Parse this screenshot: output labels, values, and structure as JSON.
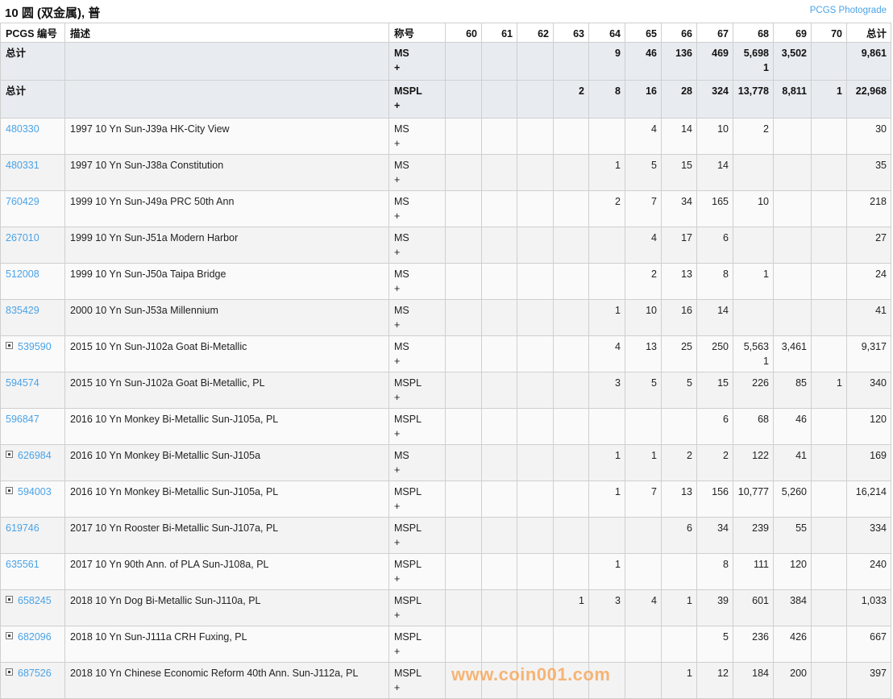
{
  "title": "10 圆 (双金属), 普",
  "photograde_link": "PCGS Photograde",
  "headers": [
    "PCGS 编号",
    "描述",
    "称号",
    "60",
    "61",
    "62",
    "63",
    "64",
    "65",
    "66",
    "67",
    "68",
    "69",
    "70",
    "总计"
  ],
  "totals": [
    {
      "label": "总计",
      "grade": "MS\n+",
      "cells": [
        "",
        "",
        "",
        "",
        "9",
        "46",
        "136",
        "469",
        "5,698\n1",
        "3,502",
        ""
      ],
      "total": "9,861"
    },
    {
      "label": "总计",
      "grade": "MSPL\n+",
      "cells": [
        "",
        "",
        "",
        "2",
        "8",
        "16",
        "28",
        "324",
        "13,778",
        "8,811",
        "1"
      ],
      "total": "22,968"
    }
  ],
  "rows": [
    {
      "code": "480330",
      "expand": false,
      "desc": "1997 10 Yn Sun-J39a HK-City View",
      "grade": "MS\n+",
      "cells": [
        "",
        "",
        "",
        "",
        "",
        "4",
        "14",
        "10",
        "2",
        "",
        ""
      ],
      "total": "30"
    },
    {
      "code": "480331",
      "expand": false,
      "desc": "1997 10 Yn Sun-J38a Constitution",
      "grade": "MS\n+",
      "cells": [
        "",
        "",
        "",
        "",
        "1",
        "5",
        "15",
        "14",
        "",
        "",
        ""
      ],
      "total": "35"
    },
    {
      "code": "760429",
      "expand": false,
      "desc": "1999 10 Yn Sun-J49a PRC 50th Ann",
      "grade": "MS\n+",
      "cells": [
        "",
        "",
        "",
        "",
        "2",
        "7",
        "34",
        "165",
        "10",
        "",
        ""
      ],
      "total": "218"
    },
    {
      "code": "267010",
      "expand": false,
      "desc": "1999 10 Yn Sun-J51a Modern Harbor",
      "grade": "MS\n+",
      "cells": [
        "",
        "",
        "",
        "",
        "",
        "4",
        "17",
        "6",
        "",
        "",
        ""
      ],
      "total": "27"
    },
    {
      "code": "512008",
      "expand": false,
      "desc": "1999 10 Yn Sun-J50a Taipa Bridge",
      "grade": "MS\n+",
      "cells": [
        "",
        "",
        "",
        "",
        "",
        "2",
        "13",
        "8",
        "1",
        "",
        ""
      ],
      "total": "24"
    },
    {
      "code": "835429",
      "expand": false,
      "desc": "2000 10 Yn Sun-J53a Millennium",
      "grade": "MS\n+",
      "cells": [
        "",
        "",
        "",
        "",
        "1",
        "10",
        "16",
        "14",
        "",
        "",
        ""
      ],
      "total": "41"
    },
    {
      "code": "539590",
      "expand": true,
      "desc": "2015 10 Yn Sun-J102a Goat Bi-Metallic",
      "grade": "MS\n+",
      "cells": [
        "",
        "",
        "",
        "",
        "4",
        "13",
        "25",
        "250",
        "5,563\n1",
        "3,461",
        ""
      ],
      "total": "9,317"
    },
    {
      "code": "594574",
      "expand": false,
      "desc": "2015 10 Yn Sun-J102a Goat Bi-Metallic, PL",
      "grade": "MSPL\n+",
      "cells": [
        "",
        "",
        "",
        "",
        "3",
        "5",
        "5",
        "15",
        "226",
        "85",
        "1"
      ],
      "total": "340"
    },
    {
      "code": "596847",
      "expand": false,
      "desc": "2016 10 Yn Monkey Bi-Metallic Sun-J105a, PL",
      "grade": "MSPL\n+",
      "cells": [
        "",
        "",
        "",
        "",
        "",
        "",
        "",
        "6",
        "68",
        "46",
        ""
      ],
      "total": "120"
    },
    {
      "code": "626984",
      "expand": true,
      "desc": "2016 10 Yn Monkey Bi-Metallic Sun-J105a",
      "grade": "MS\n+",
      "cells": [
        "",
        "",
        "",
        "",
        "1",
        "1",
        "2",
        "2",
        "122",
        "41",
        ""
      ],
      "total": "169"
    },
    {
      "code": "594003",
      "expand": true,
      "desc": "2016 10 Yn Monkey Bi-Metallic Sun-J105a, PL",
      "grade": "MSPL\n+",
      "cells": [
        "",
        "",
        "",
        "",
        "1",
        "7",
        "13",
        "156",
        "10,777",
        "5,260",
        ""
      ],
      "total": "16,214"
    },
    {
      "code": "619746",
      "expand": false,
      "desc": "2017 10 Yn Rooster Bi-Metallic Sun-J107a, PL",
      "grade": "MSPL\n+",
      "cells": [
        "",
        "",
        "",
        "",
        "",
        "",
        "6",
        "34",
        "239",
        "55",
        ""
      ],
      "total": "334"
    },
    {
      "code": "635561",
      "expand": false,
      "desc": "2017 10 Yn 90th Ann. of PLA Sun-J108a, PL",
      "grade": "MSPL\n+",
      "cells": [
        "",
        "",
        "",
        "",
        "1",
        "",
        "",
        "8",
        "111",
        "120",
        ""
      ],
      "total": "240"
    },
    {
      "code": "658245",
      "expand": true,
      "desc": "2018 10 Yn Dog Bi-Metallic Sun-J110a, PL",
      "grade": "MSPL\n+",
      "cells": [
        "",
        "",
        "",
        "1",
        "3",
        "4",
        "1",
        "39",
        "601",
        "384",
        ""
      ],
      "total": "1,033"
    },
    {
      "code": "682096",
      "expand": true,
      "desc": "2018 10 Yn Sun-J111a CRH Fuxing, PL",
      "grade": "MSPL\n+",
      "cells": [
        "",
        "",
        "",
        "",
        "",
        "",
        "",
        "5",
        "236",
        "426",
        ""
      ],
      "total": "667"
    },
    {
      "code": "687526",
      "expand": true,
      "desc": "2018 10 Yn Chinese Economic Reform 40th Ann. Sun-J112a, PL",
      "grade": "MSPL\n+",
      "cells": [
        "",
        "",
        "",
        "",
        "",
        "",
        "1",
        "12",
        "184",
        "200",
        ""
      ],
      "total": "397"
    }
  ],
  "watermark": "www.coin001.com"
}
